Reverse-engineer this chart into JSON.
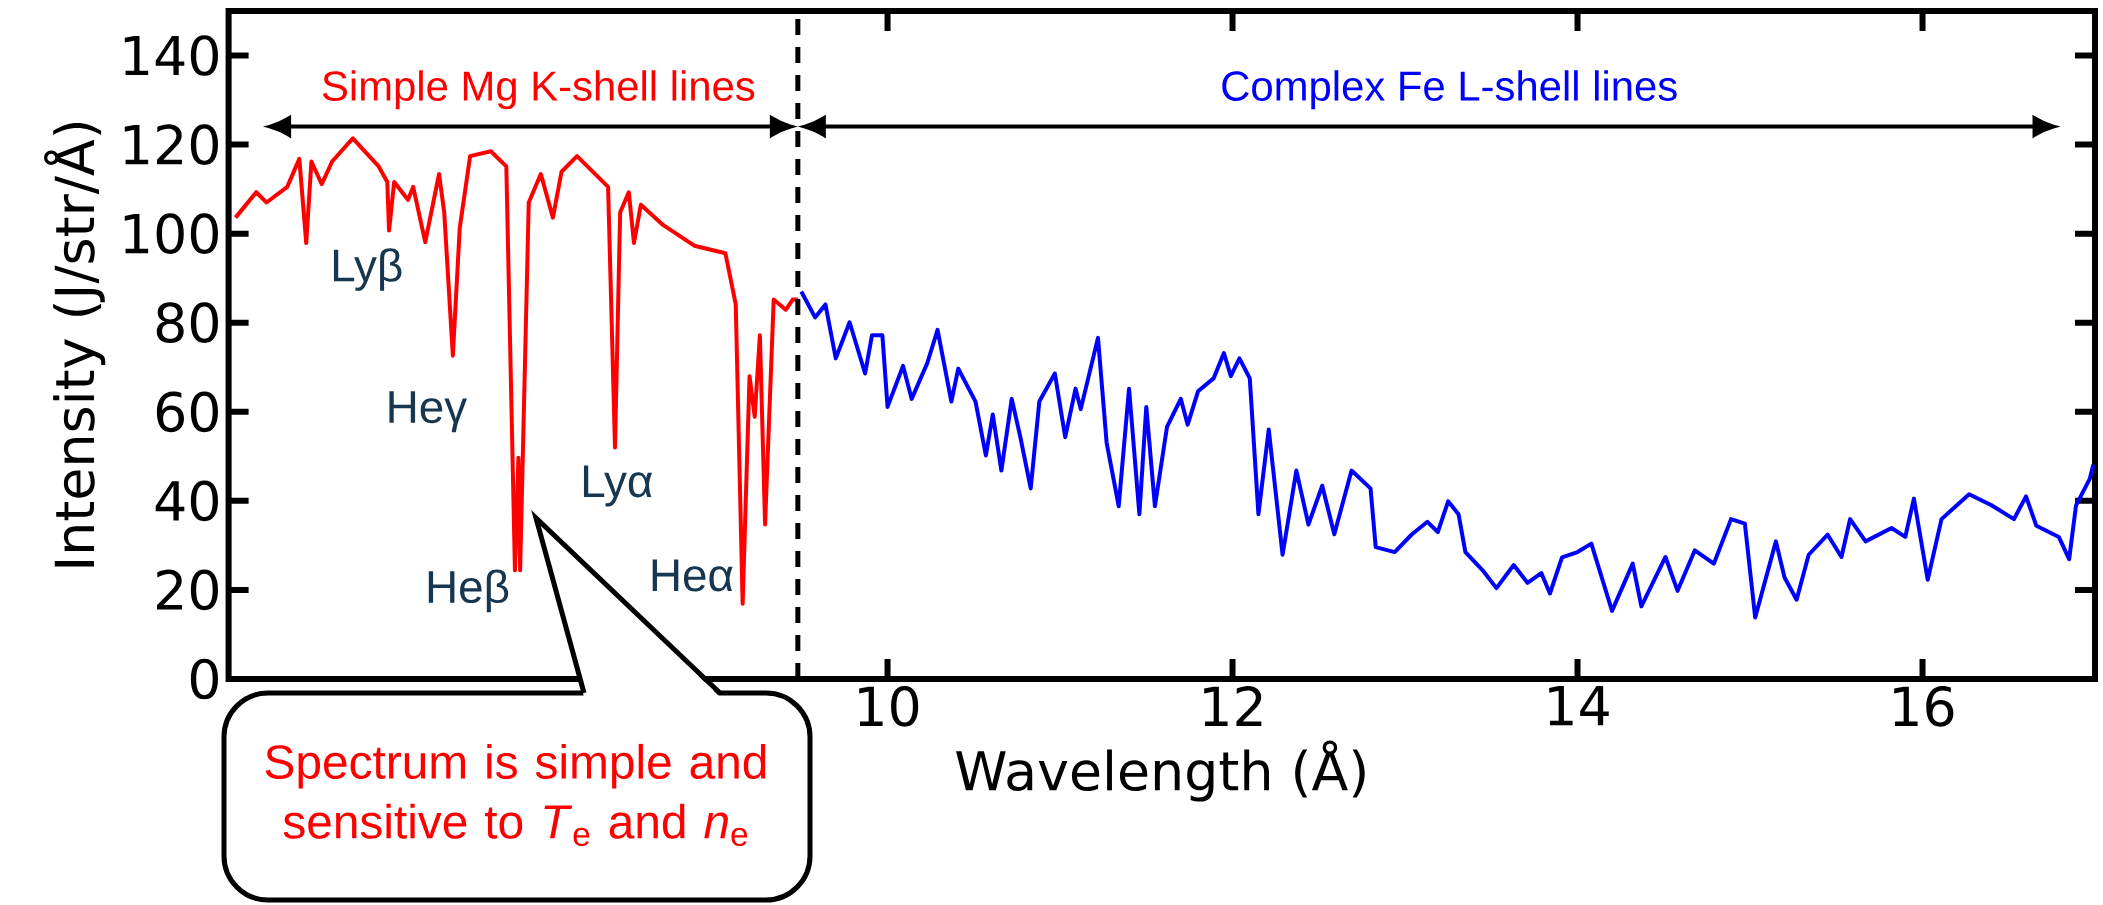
{
  "chart_data": {
    "type": "line",
    "xlabel": "Wavelength (Å)",
    "ylabel": "Intensity (J/str/Å)",
    "xlim": [
      6.18,
      17.0
    ],
    "ylim": [
      0,
      150
    ],
    "xticks": [
      10,
      12,
      14,
      16
    ],
    "yticks": [
      0,
      20,
      40,
      60,
      80,
      100,
      120,
      140
    ],
    "series": [
      {
        "color": "#ff0000",
        "x": [
          6.22,
          6.34,
          6.4,
          6.52,
          6.59,
          6.63,
          6.66,
          6.72,
          6.78,
          6.9,
          7.05,
          7.1,
          7.11,
          7.14,
          7.22,
          7.25,
          7.32,
          7.4,
          7.43,
          7.48,
          7.52,
          7.58,
          7.7,
          7.79,
          7.84,
          7.86,
          7.87,
          7.92,
          7.99,
          8.06,
          8.11,
          8.2,
          8.38,
          8.42,
          8.45,
          8.5,
          8.53,
          8.57,
          8.7,
          8.88,
          9.06,
          9.12,
          9.16,
          9.2,
          9.23,
          9.26,
          9.29,
          9.34,
          9.41,
          9.45,
          9.48
        ],
        "values": [
          103.6,
          109.3,
          107.0,
          110.5,
          116.8,
          97.9,
          116.2,
          111.1,
          116.2,
          121.4,
          115.1,
          111.6,
          100.7,
          111.6,
          107.6,
          110.5,
          98.1,
          113.4,
          104.8,
          72.6,
          101.3,
          117.4,
          118.5,
          115.1,
          24.4,
          49.7,
          24.4,
          107.0,
          113.4,
          103.6,
          113.9,
          117.4,
          110.5,
          52.0,
          104.8,
          109.3,
          97.9,
          106.5,
          101.9,
          97.3,
          95.6,
          84.1,
          16.9,
          68.0,
          58.9,
          77.2,
          34.7,
          85.2,
          82.9,
          85.2,
          85.2
        ]
      },
      {
        "color": "#0000ff",
        "x": [
          9.5,
          9.58,
          9.64,
          9.7,
          9.78,
          9.87,
          9.91,
          9.97,
          10.0,
          10.09,
          10.14,
          10.23,
          10.29,
          10.37,
          10.41,
          10.51,
          10.57,
          10.61,
          10.66,
          10.72,
          10.77,
          10.83,
          10.88,
          10.97,
          11.03,
          11.09,
          11.12,
          11.22,
          11.27,
          11.34,
          11.4,
          11.46,
          11.5,
          11.55,
          11.62,
          11.7,
          11.74,
          11.8,
          11.89,
          11.95,
          11.99,
          12.04,
          12.1,
          12.15,
          12.21,
          12.29,
          12.37,
          12.44,
          12.52,
          12.59,
          12.69,
          12.8,
          12.83,
          12.94,
          13.04,
          13.13,
          13.19,
          13.25,
          13.31,
          13.35,
          13.45,
          13.53,
          13.63,
          13.71,
          13.79,
          13.84,
          13.91,
          14.0,
          14.08,
          14.2,
          14.32,
          14.37,
          14.51,
          14.58,
          14.68,
          14.79,
          14.89,
          14.97,
          15.03,
          15.15,
          15.2,
          15.27,
          15.34,
          15.45,
          15.53,
          15.58,
          15.67,
          15.82,
          15.9,
          15.95,
          16.03,
          16.11,
          16.27,
          16.4,
          16.53,
          16.6,
          16.66,
          16.79,
          16.85,
          16.89,
          16.97,
          16.99
        ],
        "values": [
          87.0,
          81.2,
          84.1,
          72.0,
          80.1,
          68.6,
          77.2,
          77.2,
          61.1,
          70.3,
          62.9,
          70.9,
          78.4,
          62.3,
          69.7,
          62.3,
          50.2,
          59.4,
          46.8,
          62.9,
          54.3,
          42.8,
          62.3,
          68.6,
          54.3,
          65.2,
          60.6,
          76.6,
          53.1,
          38.8,
          65.2,
          37.0,
          61.1,
          38.8,
          56.6,
          62.9,
          57.1,
          64.6,
          67.5,
          73.2,
          68.0,
          72.0,
          67.5,
          37.0,
          56.0,
          27.9,
          46.8,
          34.7,
          43.4,
          32.5,
          46.8,
          42.8,
          29.6,
          28.5,
          32.5,
          35.3,
          33.0,
          39.9,
          37.0,
          28.5,
          24.4,
          20.4,
          25.6,
          21.6,
          23.8,
          19.2,
          27.3,
          28.5,
          30.4,
          15.3,
          25.9,
          16.3,
          27.4,
          19.8,
          28.9,
          25.9,
          35.9,
          34.9,
          13.8,
          30.9,
          22.8,
          17.8,
          27.9,
          32.4,
          27.4,
          35.9,
          30.9,
          33.9,
          31.9,
          40.5,
          22.3,
          35.9,
          41.5,
          39.0,
          35.9,
          41.0,
          34.4,
          31.9,
          26.9,
          39.0,
          45.0,
          48.1
        ]
      }
    ],
    "ref_lines": [
      {
        "axis": "x",
        "value": 9.48,
        "color": "#000000",
        "line_style": "dashed"
      }
    ],
    "annotations": [
      "Simple Mg K-shell lines",
      "Complex Fe L-shell lines",
      "Lyβ",
      "Heγ",
      "Heβ",
      "Lyα",
      "Heα",
      "Spectrum is simple and sensitive to *T*$_{e}$ and *n*$_{e}$"
    ]
  }
}
